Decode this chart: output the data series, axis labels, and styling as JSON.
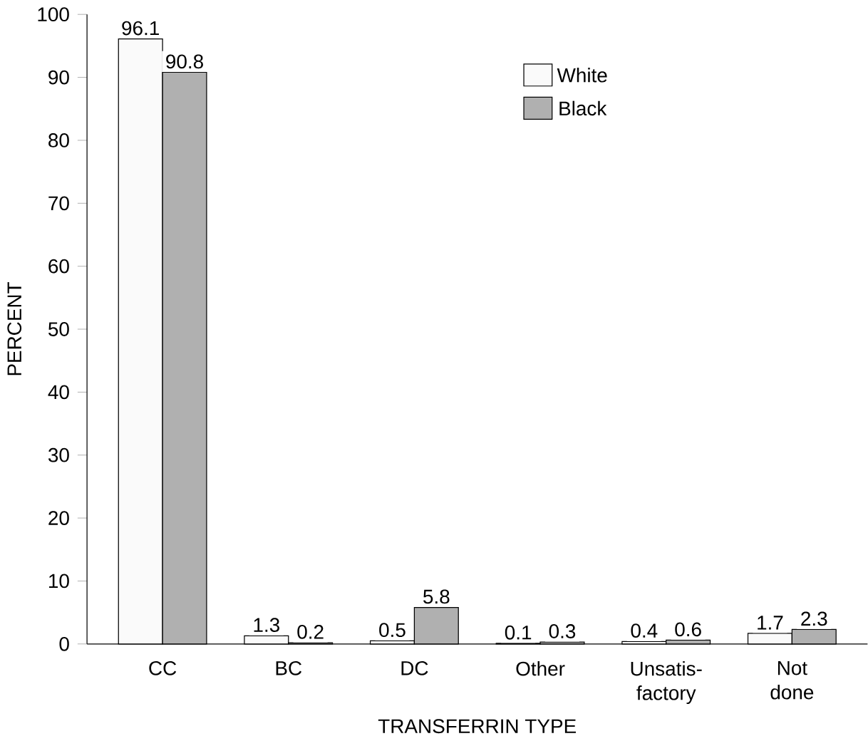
{
  "chart_data": {
    "type": "bar",
    "xlabel": "TRANSFERRIN TYPE",
    "ylabel": "PERCENT",
    "categories": [
      "CC",
      "BC",
      "DC",
      "Other",
      "Unsatis-factory",
      "Not done"
    ],
    "series": [
      {
        "name": "White",
        "color": "#fafafa",
        "values": [
          96.1,
          1.3,
          0.5,
          0.1,
          0.4,
          1.7
        ]
      },
      {
        "name": "Black",
        "color": "#b0b0b0",
        "values": [
          90.8,
          0.2,
          5.8,
          0.3,
          0.6,
          2.3
        ]
      }
    ],
    "ylim": [
      0,
      100
    ],
    "yticks": [
      0,
      10,
      20,
      30,
      40,
      50,
      60,
      70,
      80,
      90,
      100
    ],
    "data_labels": true,
    "legend": "top right",
    "grid": false
  }
}
